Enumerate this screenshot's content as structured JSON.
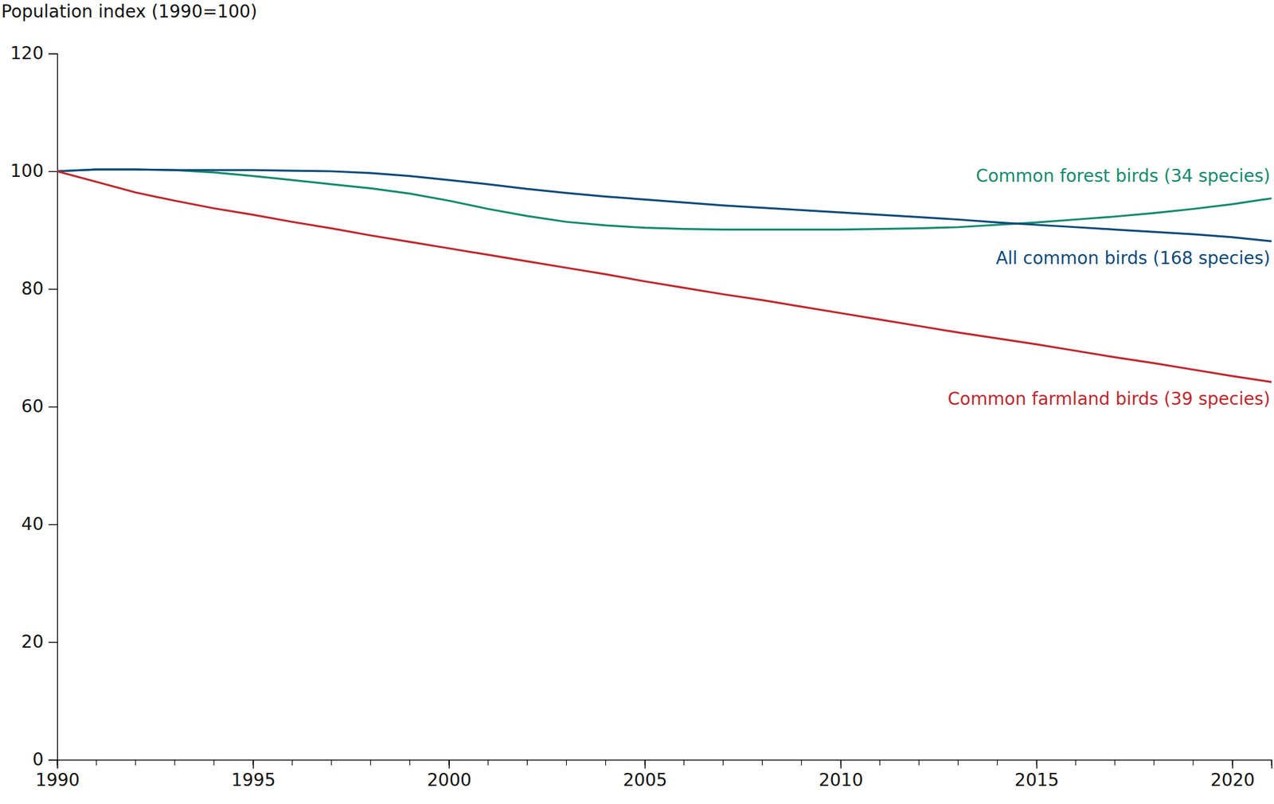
{
  "chart_data": {
    "type": "line",
    "ylabel": "Population index (1990=100)",
    "x": [
      1990,
      1991,
      1992,
      1993,
      1994,
      1995,
      1996,
      1997,
      1998,
      1999,
      2000,
      2001,
      2002,
      2003,
      2004,
      2005,
      2006,
      2007,
      2008,
      2009,
      2010,
      2011,
      2012,
      2013,
      2014,
      2015,
      2016,
      2017,
      2018,
      2019,
      2020,
      2021
    ],
    "series": [
      {
        "name": "Common forest birds (34 species)",
        "color": "#138a6e",
        "values": [
          100,
          100.3,
          100.3,
          100.2,
          99.8,
          99.2,
          98.5,
          97.8,
          97.1,
          96.2,
          95.0,
          93.6,
          92.4,
          91.4,
          90.8,
          90.4,
          90.2,
          90.1,
          90.1,
          90.1,
          90.1,
          90.2,
          90.3,
          90.5,
          90.9,
          91.3,
          91.8,
          92.3,
          92.9,
          93.6,
          94.4,
          95.4
        ]
      },
      {
        "name": "All common birds (168 species)",
        "color": "#0c4a7a",
        "values": [
          100,
          100.3,
          100.3,
          100.2,
          100.2,
          100.2,
          100.1,
          100.0,
          99.7,
          99.2,
          98.5,
          97.8,
          97.0,
          96.3,
          95.7,
          95.2,
          94.7,
          94.2,
          93.8,
          93.4,
          93.0,
          92.6,
          92.2,
          91.8,
          91.3,
          90.9,
          90.5,
          90.1,
          89.7,
          89.3,
          88.8,
          88.1
        ]
      },
      {
        "name": "Common farmland birds (39 species)",
        "color": "#c0272d",
        "values": [
          100,
          98.2,
          96.4,
          95.0,
          93.7,
          92.6,
          91.4,
          90.3,
          89.1,
          88.0,
          86.9,
          85.8,
          84.7,
          83.6,
          82.5,
          81.3,
          80.2,
          79.1,
          78.1,
          77.0,
          75.9,
          74.8,
          73.7,
          72.6,
          71.6,
          70.6,
          69.5,
          68.4,
          67.4,
          66.3,
          65.2,
          64.2
        ]
      }
    ],
    "xlim": [
      1990,
      2021
    ],
    "xticks": [
      1990,
      1995,
      2000,
      2005,
      2010,
      2015,
      2020
    ],
    "ylim": [
      0,
      120
    ],
    "yticks": [
      0,
      20,
      40,
      60,
      80,
      100,
      120
    ],
    "grid": false
  }
}
